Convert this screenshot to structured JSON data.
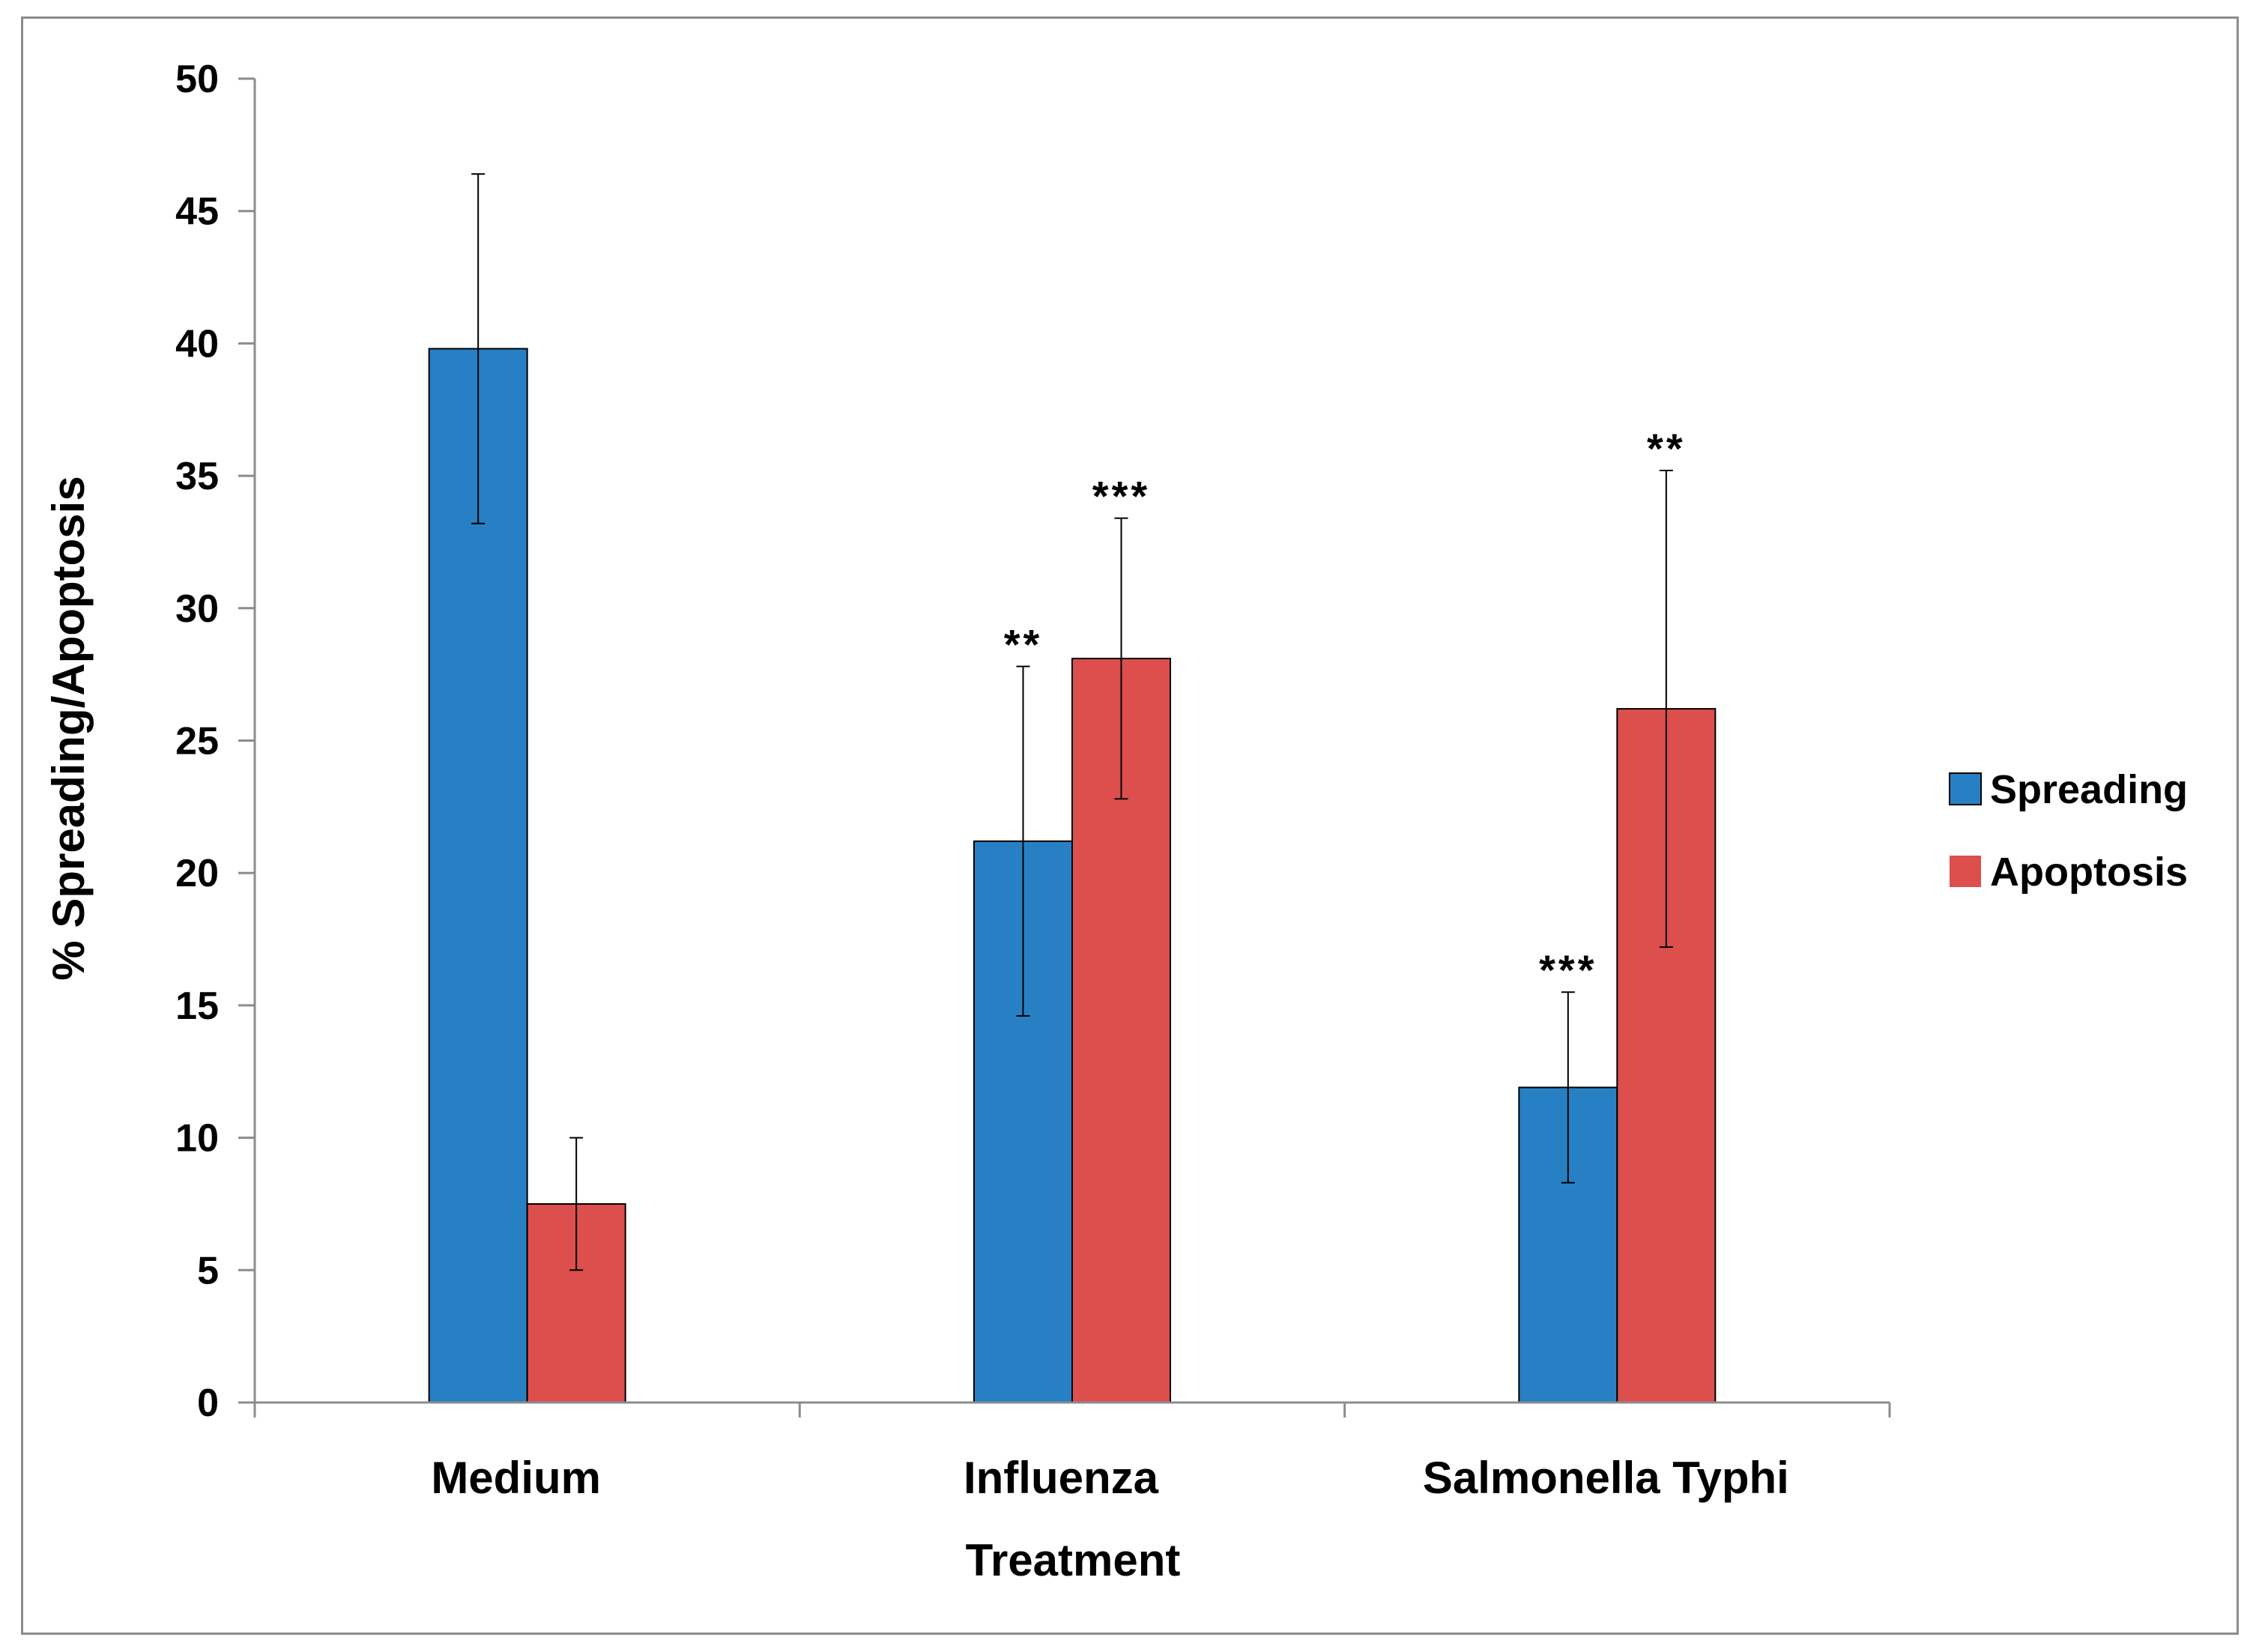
{
  "chart_data": {
    "type": "bar",
    "title": "",
    "xlabel": "Treatment",
    "ylabel": "% Spreading/Apoptosis",
    "ylim": [
      0,
      50
    ],
    "yticks": [
      0,
      5,
      10,
      15,
      20,
      25,
      30,
      35,
      40,
      45,
      50
    ],
    "grid": false,
    "legend_position": "right",
    "categories": [
      "Medium",
      "Influenza",
      "Salmonella Typhi"
    ],
    "series": [
      {
        "name": "Spreading",
        "color": "#2880c4",
        "values": [
          39.8,
          21.2,
          11.9
        ],
        "errors": [
          6.6,
          6.6,
          3.6
        ],
        "significance": [
          "",
          "**",
          "***"
        ]
      },
      {
        "name": "Apoptosis",
        "color": "#dc4f4d",
        "values": [
          7.5,
          28.1,
          26.2
        ],
        "errors": [
          2.5,
          5.3,
          9.0
        ],
        "significance": [
          "",
          "***",
          "**"
        ]
      }
    ]
  }
}
